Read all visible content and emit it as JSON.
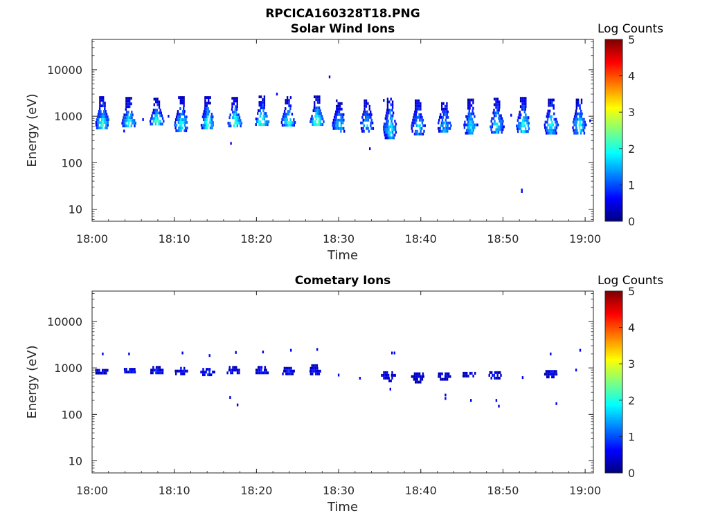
{
  "figure_title": "RPCICA160328T18.PNG",
  "colors": {
    "colormap": [
      "#00007f",
      "#0000ff",
      "#007fff",
      "#00ffff",
      "#7fff7f",
      "#ffff00",
      "#ff7f00",
      "#ff0000",
      "#7f0000"
    ]
  },
  "chart_data": [
    {
      "type": "heatmap",
      "title": "Solar Wind Ions",
      "xlabel": "Time",
      "ylabel": "Energy (eV)",
      "x_range": [
        "18:00",
        "19:01"
      ],
      "y_scale": "log",
      "ylim": [
        5.5,
        45000
      ],
      "x_ticks": [
        "18:00",
        "18:10",
        "18:20",
        "18:30",
        "18:40",
        "18:50",
        "19:00"
      ],
      "y_ticks": [
        "10",
        "100",
        "1000",
        "10000"
      ],
      "colorbar": {
        "label": "Log Counts",
        "range": [
          0,
          5
        ],
        "ticks": [
          "0",
          "1",
          "2",
          "3",
          "4",
          "5"
        ]
      },
      "grid": false,
      "clusters": [
        {
          "t": 1.2,
          "e_low": 550,
          "e_high": 2700,
          "peak": 2.2
        },
        {
          "t": 4.4,
          "e_low": 600,
          "e_high": 2600,
          "peak": 2.1
        },
        {
          "t": 7.8,
          "e_low": 650,
          "e_high": 2500,
          "peak": 2.3
        },
        {
          "t": 10.8,
          "e_low": 500,
          "e_high": 2700,
          "peak": 2.1
        },
        {
          "t": 14.0,
          "e_low": 550,
          "e_high": 2700,
          "peak": 2.2
        },
        {
          "t": 17.3,
          "e_low": 600,
          "e_high": 2600,
          "peak": 2.3
        },
        {
          "t": 20.6,
          "e_low": 650,
          "e_high": 2800,
          "peak": 2.4
        },
        {
          "t": 23.8,
          "e_low": 650,
          "e_high": 2700,
          "peak": 2.2
        },
        {
          "t": 27.3,
          "e_low": 650,
          "e_high": 2800,
          "peak": 2.5
        },
        {
          "t": 30.0,
          "e_low": 500,
          "e_high": 2300,
          "peak": 1.8
        },
        {
          "t": 33.4,
          "e_low": 500,
          "e_high": 2300,
          "peak": 1.7
        },
        {
          "t": 36.2,
          "e_low": 350,
          "e_high": 2500,
          "peak": 2.0
        },
        {
          "t": 39.6,
          "e_low": 400,
          "e_high": 2300,
          "peak": 1.8
        },
        {
          "t": 42.8,
          "e_low": 450,
          "e_high": 2300,
          "peak": 1.7
        },
        {
          "t": 46.0,
          "e_low": 450,
          "e_high": 2400,
          "peak": 1.9
        },
        {
          "t": 49.2,
          "e_low": 450,
          "e_high": 2500,
          "peak": 2.0
        },
        {
          "t": 52.4,
          "e_low": 450,
          "e_high": 2600,
          "peak": 2.2
        },
        {
          "t": 55.8,
          "e_low": 450,
          "e_high": 2400,
          "peak": 2.0
        },
        {
          "t": 59.2,
          "e_low": 450,
          "e_high": 2400,
          "peak": 2.1
        }
      ],
      "isolated_points": [
        {
          "t": 28.9,
          "e": 7000,
          "c": 0.6
        },
        {
          "t": 22.5,
          "e": 3000,
          "c": 0.6
        },
        {
          "t": 16.9,
          "e": 260,
          "c": 0.6
        },
        {
          "t": 33.8,
          "e": 200,
          "c": 0.6
        },
        {
          "t": 52.3,
          "e": 24,
          "c": 0.7
        },
        {
          "t": 52.3,
          "e": 26,
          "c": 0.7
        },
        {
          "t": 3.9,
          "e": 480,
          "c": 0.6
        },
        {
          "t": 6.2,
          "e": 850,
          "c": 0.6
        },
        {
          "t": 9.3,
          "e": 1000,
          "c": 0.6
        },
        {
          "t": 35.5,
          "e": 2200,
          "c": 0.6
        },
        {
          "t": 51.0,
          "e": 1050,
          "c": 0.6
        },
        {
          "t": 60.6,
          "e": 800,
          "c": 0.6
        }
      ]
    },
    {
      "type": "heatmap",
      "title": "Cometary Ions",
      "xlabel": "Time",
      "ylabel": "Energy (eV)",
      "x_range": [
        "18:00",
        "19:01"
      ],
      "y_scale": "log",
      "ylim": [
        5.5,
        45000
      ],
      "x_ticks": [
        "18:00",
        "18:10",
        "18:20",
        "18:30",
        "18:40",
        "18:50",
        "19:00"
      ],
      "y_ticks": [
        "10",
        "100",
        "1000",
        "10000"
      ],
      "colorbar": {
        "label": "Log Counts",
        "range": [
          0,
          5
        ],
        "ticks": [
          "0",
          "1",
          "2",
          "3",
          "4",
          "5"
        ]
      },
      "grid": false,
      "clusters": [
        {
          "t": 1.1,
          "e_low": 800,
          "e_high": 950,
          "peak": 0.7
        },
        {
          "t": 4.5,
          "e_low": 800,
          "e_high": 1000,
          "peak": 0.8
        },
        {
          "t": 7.8,
          "e_low": 800,
          "e_high": 1100,
          "peak": 0.8
        },
        {
          "t": 10.8,
          "e_low": 750,
          "e_high": 1050,
          "peak": 0.8
        },
        {
          "t": 14.0,
          "e_low": 750,
          "e_high": 1000,
          "peak": 0.9
        },
        {
          "t": 17.1,
          "e_low": 800,
          "e_high": 1100,
          "peak": 0.7
        },
        {
          "t": 20.6,
          "e_low": 800,
          "e_high": 1100,
          "peak": 0.8
        },
        {
          "t": 23.8,
          "e_low": 750,
          "e_high": 1050,
          "peak": 0.8
        },
        {
          "t": 27.0,
          "e_low": 750,
          "e_high": 1200,
          "peak": 0.9
        },
        {
          "t": 36.0,
          "e_low": 550,
          "e_high": 850,
          "peak": 0.6
        },
        {
          "t": 39.6,
          "e_low": 520,
          "e_high": 800,
          "peak": 0.6
        },
        {
          "t": 42.8,
          "e_low": 550,
          "e_high": 800,
          "peak": 0.6
        },
        {
          "t": 45.7,
          "e_low": 650,
          "e_high": 820,
          "peak": 0.7
        },
        {
          "t": 49.0,
          "e_low": 600,
          "e_high": 850,
          "peak": 0.8
        },
        {
          "t": 55.8,
          "e_low": 650,
          "e_high": 900,
          "peak": 0.7
        }
      ],
      "isolated_points": [
        {
          "t": 1.3,
          "e": 2000,
          "c": 0.6
        },
        {
          "t": 4.5,
          "e": 2000,
          "c": 0.6
        },
        {
          "t": 11.0,
          "e": 2100,
          "c": 0.6
        },
        {
          "t": 14.3,
          "e": 1850,
          "c": 0.6
        },
        {
          "t": 17.5,
          "e": 2150,
          "c": 0.6
        },
        {
          "t": 20.8,
          "e": 2200,
          "c": 0.6
        },
        {
          "t": 24.2,
          "e": 2400,
          "c": 0.6
        },
        {
          "t": 27.4,
          "e": 2500,
          "c": 0.6
        },
        {
          "t": 36.5,
          "e": 2100,
          "c": 0.6
        },
        {
          "t": 36.8,
          "e": 2100,
          "c": 0.6
        },
        {
          "t": 55.8,
          "e": 2000,
          "c": 0.6
        },
        {
          "t": 59.4,
          "e": 2400,
          "c": 0.6
        },
        {
          "t": 16.8,
          "e": 230,
          "c": 0.6
        },
        {
          "t": 17.7,
          "e": 160,
          "c": 0.6
        },
        {
          "t": 30.0,
          "e": 700,
          "c": 0.6
        },
        {
          "t": 32.6,
          "e": 600,
          "c": 0.6
        },
        {
          "t": 36.3,
          "e": 350,
          "c": 0.6
        },
        {
          "t": 43.0,
          "e": 260,
          "c": 0.6
        },
        {
          "t": 43.0,
          "e": 220,
          "c": 0.6
        },
        {
          "t": 46.1,
          "e": 200,
          "c": 0.6
        },
        {
          "t": 49.2,
          "e": 200,
          "c": 0.6
        },
        {
          "t": 49.5,
          "e": 150,
          "c": 0.6
        },
        {
          "t": 52.4,
          "e": 620,
          "c": 0.6
        },
        {
          "t": 56.5,
          "e": 170,
          "c": 0.6
        },
        {
          "t": 58.9,
          "e": 900,
          "c": 0.6
        }
      ]
    }
  ]
}
